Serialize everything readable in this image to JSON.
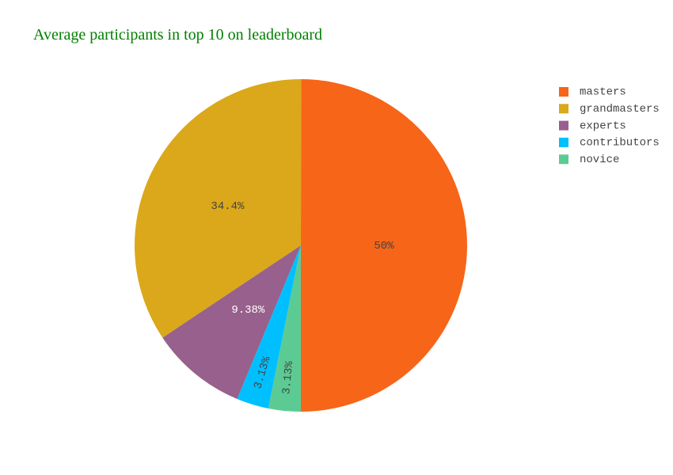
{
  "chart_data": {
    "type": "pie",
    "title": "Average participants in top 10 on leaderboard",
    "categories": [
      "masters",
      "grandmasters",
      "experts",
      "contributors",
      "novice"
    ],
    "values": [
      50,
      34.4,
      9.38,
      3.13,
      3.13
    ],
    "value_labels": [
      "50%",
      "34.4%",
      "9.38%",
      "3.13%",
      "3.13%"
    ],
    "colors": [
      "#f76518",
      "#daa81a",
      "#98608c",
      "#00bfff",
      "#5ccb93"
    ],
    "legend": "top-right"
  }
}
